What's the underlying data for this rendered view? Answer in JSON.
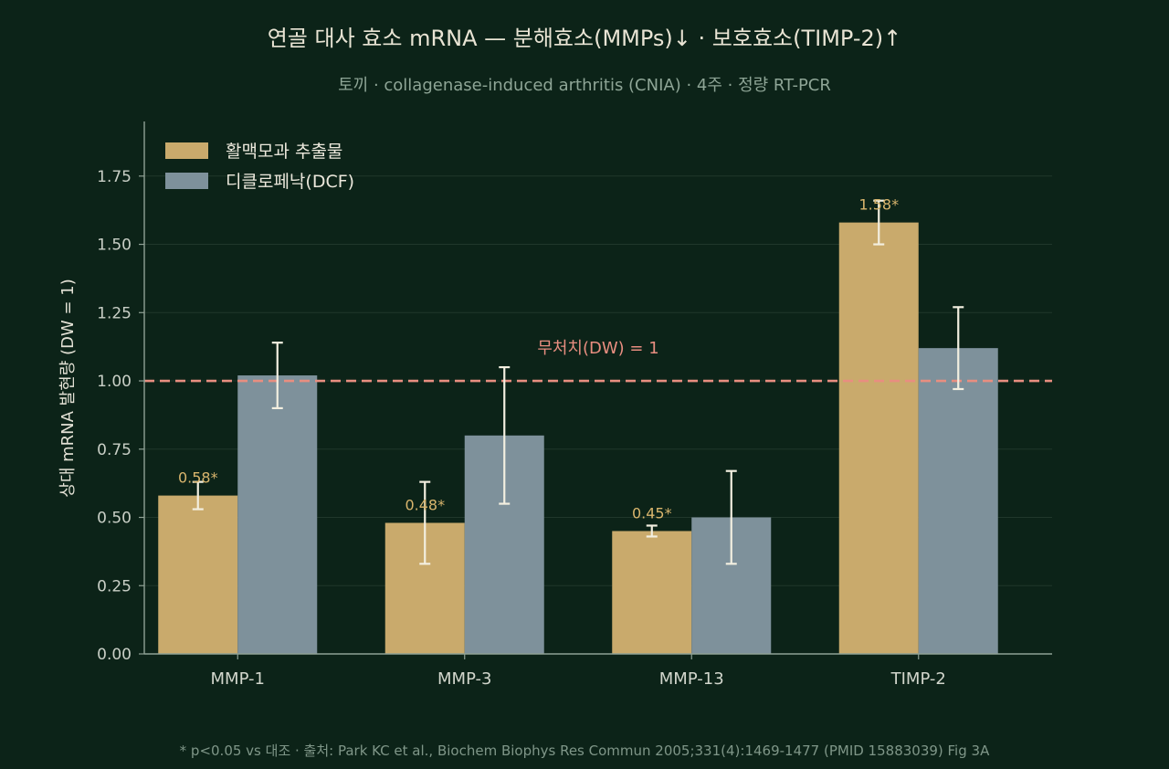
{
  "title": "연골 대사 효소 mRNA — 분해효소(MMPs)↓ · 보호효소(TIMP-2)↑",
  "subtitle": "토끼 · collagenase-induced arthritis (CNIA) · 4주 · 정량 RT-PCR",
  "footer": "* p<0.05 vs 대조 · 출처: Park KC et al., Biochem Biophys Res Commun 2005;331(4):1469-1477 (PMID 15883039) Fig 3A",
  "colors": {
    "background": "#0c2318",
    "series_1": "#c9aa6c",
    "series_2": "#7e919b",
    "reference": "#e88e80",
    "error_bar": "#f3efe0",
    "star_label": "#d9b56d"
  },
  "chart_data": {
    "type": "bar",
    "categories": [
      "MMP-1",
      "MMP-3",
      "MMP-13",
      "TIMP-2"
    ],
    "series": [
      {
        "name": "활맥모과 추출물",
        "values": [
          0.58,
          0.48,
          0.45,
          1.58
        ],
        "error": [
          0.05,
          0.15,
          0.02,
          0.08
        ],
        "value_labels": [
          "0.58*",
          "0.48*",
          "0.45*",
          "1.58*"
        ]
      },
      {
        "name": "디클로페낙(DCF)",
        "values": [
          1.02,
          0.8,
          0.5,
          1.12
        ],
        "error": [
          0.12,
          0.25,
          0.17,
          0.15
        ],
        "value_labels": [
          "",
          "",
          "",
          ""
        ]
      }
    ],
    "ylabel": "상대 mRNA 발현량 (DW = 1)",
    "xlabel": "",
    "ylim": [
      0,
      1.95
    ],
    "yticks": [
      0.0,
      0.25,
      0.5,
      0.75,
      1.0,
      1.25,
      1.5,
      1.75
    ],
    "ytick_labels": [
      "0.00",
      "0.25",
      "0.50",
      "0.75",
      "1.00",
      "1.25",
      "1.50",
      "1.75"
    ],
    "reference_line": {
      "value": 1.0,
      "label": "무처치(DW) = 1",
      "style": "dashed"
    },
    "grid": "horizontal",
    "legend_position": "top-left"
  }
}
